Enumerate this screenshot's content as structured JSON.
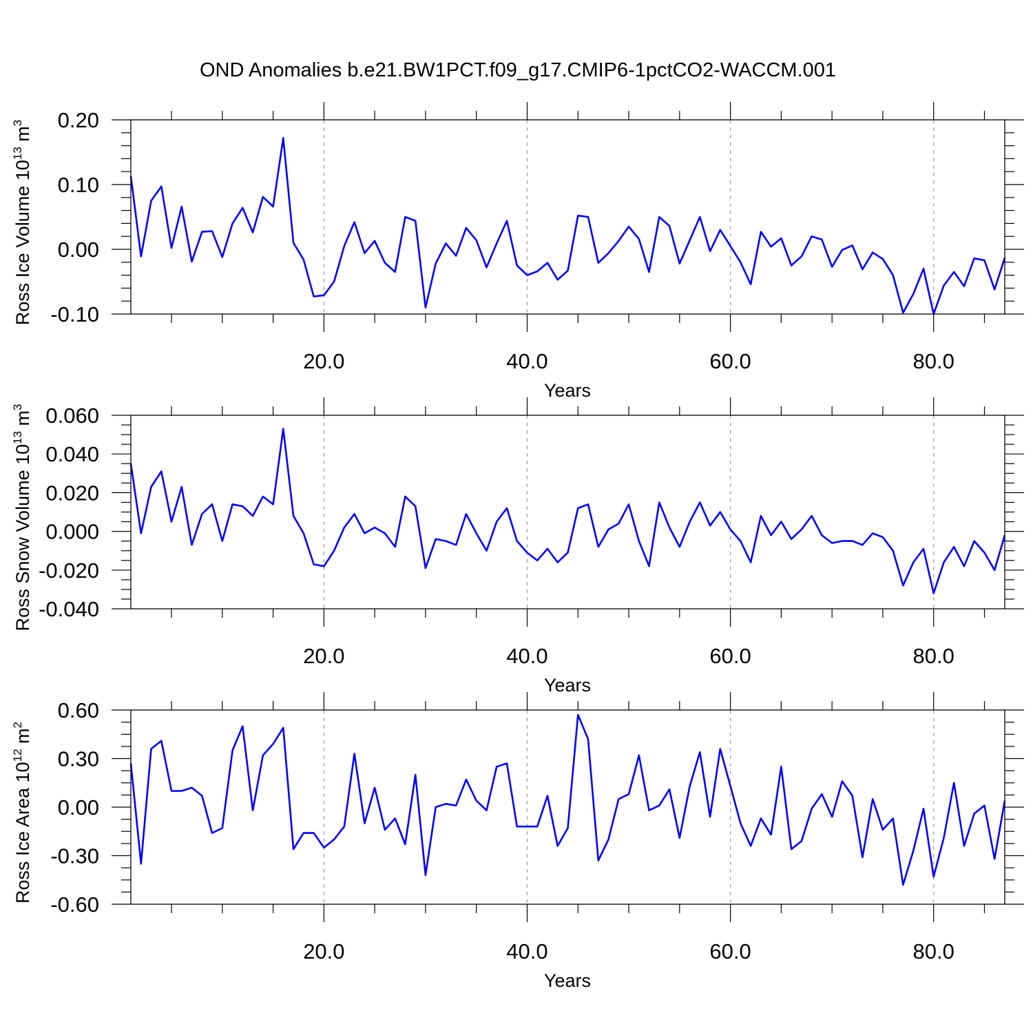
{
  "title": "OND Anomalies b.e21.BW1PCT.f09_g17.CMIP6-1pctCO2-WACCM.001",
  "colors": {
    "series": "#0000ff",
    "axis": "#000000",
    "grid": "#9a9a9a"
  },
  "chart_data": [
    {
      "type": "line",
      "xlabel": "Years",
      "ylabel_main": "Ross Ice Volume 10",
      "ylabel_sup": "13",
      "ylabel_unit": " m",
      "ylabel_unit_sup": "3",
      "xlim": [
        1,
        87
      ],
      "ylim": [
        -0.1,
        0.2
      ],
      "xticks": [
        20,
        40,
        60,
        80
      ],
      "xtick_labels": [
        "20.0",
        "40.0",
        "60.0",
        "80.0"
      ],
      "yticks": [
        -0.1,
        0.0,
        0.1,
        0.2
      ],
      "ytick_labels": [
        "-0.10",
        "0.00",
        "0.10",
        "0.20"
      ],
      "grid": "vertical dashed at x ticks",
      "x_start": 1,
      "values": [
        0.113,
        -0.011,
        0.075,
        0.097,
        0.002,
        0.066,
        -0.019,
        0.027,
        0.028,
        -0.012,
        0.04,
        0.064,
        0.026,
        0.081,
        0.066,
        0.172,
        0.01,
        -0.016,
        -0.073,
        -0.071,
        -0.05,
        0.005,
        0.042,
        -0.006,
        0.013,
        -0.021,
        -0.035,
        0.05,
        0.044,
        -0.09,
        -0.022,
        0.009,
        -0.01,
        0.033,
        0.014,
        -0.028,
        0.009,
        0.044,
        -0.025,
        -0.04,
        -0.034,
        -0.021,
        -0.047,
        -0.033,
        0.052,
        0.05,
        -0.021,
        -0.006,
        0.013,
        0.035,
        0.016,
        -0.035,
        0.05,
        0.036,
        -0.022,
        0.014,
        0.05,
        -0.003,
        0.03,
        0.005,
        -0.02,
        -0.054,
        0.027,
        0.004,
        0.017,
        -0.025,
        -0.011,
        0.02,
        0.015,
        -0.027,
        -0.001,
        0.006,
        -0.031,
        -0.005,
        -0.015,
        -0.04,
        -0.098,
        -0.069,
        -0.03,
        -0.1,
        -0.056,
        -0.035,
        -0.057,
        -0.014,
        -0.017,
        -0.062,
        -0.013
      ]
    },
    {
      "type": "line",
      "xlabel": "Years",
      "ylabel_main": "Ross Snow Volume 10",
      "ylabel_sup": "13",
      "ylabel_unit": " m",
      "ylabel_unit_sup": "3",
      "xlim": [
        1,
        87
      ],
      "ylim": [
        -0.04,
        0.06
      ],
      "xticks": [
        20,
        40,
        60,
        80
      ],
      "xtick_labels": [
        "20.0",
        "40.0",
        "60.0",
        "80.0"
      ],
      "yticks": [
        -0.04,
        -0.02,
        0.0,
        0.02,
        0.04,
        0.06
      ],
      "ytick_labels": [
        "-0.040",
        "-0.020",
        "0.000",
        "0.020",
        "0.040",
        "0.060"
      ],
      "grid": "vertical dashed at x ticks",
      "x_start": 1,
      "values": [
        0.035,
        -0.001,
        0.023,
        0.031,
        0.005,
        0.023,
        -0.007,
        0.009,
        0.014,
        -0.005,
        0.014,
        0.013,
        0.008,
        0.018,
        0.014,
        0.053,
        0.008,
        -0.001,
        -0.017,
        -0.018,
        -0.01,
        0.002,
        0.009,
        -0.001,
        0.002,
        -0.001,
        -0.008,
        0.018,
        0.013,
        -0.019,
        -0.004,
        -0.005,
        -0.007,
        0.009,
        -0.001,
        -0.01,
        0.005,
        0.012,
        -0.005,
        -0.011,
        -0.015,
        -0.009,
        -0.016,
        -0.011,
        0.012,
        0.014,
        -0.008,
        0.001,
        0.004,
        0.014,
        -0.005,
        -0.018,
        0.015,
        0.002,
        -0.008,
        0.005,
        0.015,
        0.003,
        0.01,
        0.001,
        -0.005,
        -0.016,
        0.008,
        -0.002,
        0.005,
        -0.004,
        0.001,
        0.008,
        -0.002,
        -0.006,
        -0.005,
        -0.005,
        -0.007,
        -0.001,
        -0.003,
        -0.01,
        -0.028,
        -0.016,
        -0.009,
        -0.032,
        -0.016,
        -0.008,
        -0.018,
        -0.005,
        -0.011,
        -0.02,
        -0.002
      ]
    },
    {
      "type": "line",
      "xlabel": "Years",
      "ylabel_main": "Ross Ice Area 10",
      "ylabel_sup": "12",
      "ylabel_unit": " m",
      "ylabel_unit_sup": "2",
      "xlim": [
        1,
        87
      ],
      "ylim": [
        -0.6,
        0.6
      ],
      "xticks": [
        20,
        40,
        60,
        80
      ],
      "xtick_labels": [
        "20.0",
        "40.0",
        "60.0",
        "80.0"
      ],
      "yticks": [
        -0.6,
        -0.3,
        0.0,
        0.3,
        0.6
      ],
      "ytick_labels": [
        "-0.60",
        "-0.30",
        "0.00",
        "0.30",
        "0.60"
      ],
      "grid": "vertical dashed at x ticks",
      "x_start": 1,
      "values": [
        0.27,
        -0.35,
        0.36,
        0.41,
        0.1,
        0.1,
        0.12,
        0.07,
        -0.16,
        -0.13,
        0.35,
        0.5,
        -0.02,
        0.32,
        0.39,
        0.49,
        -0.26,
        -0.16,
        -0.16,
        -0.25,
        -0.2,
        -0.12,
        0.33,
        -0.1,
        0.12,
        -0.14,
        -0.07,
        -0.23,
        0.2,
        -0.42,
        0.0,
        0.02,
        0.01,
        0.17,
        0.04,
        -0.02,
        0.25,
        0.27,
        -0.12,
        -0.12,
        -0.12,
        0.07,
        -0.24,
        -0.13,
        0.57,
        0.42,
        -0.33,
        -0.2,
        0.05,
        0.08,
        0.32,
        -0.02,
        0.01,
        0.11,
        -0.19,
        0.13,
        0.34,
        -0.06,
        0.36,
        0.13,
        -0.1,
        -0.24,
        -0.07,
        -0.17,
        0.25,
        -0.26,
        -0.21,
        -0.01,
        0.08,
        -0.06,
        0.16,
        0.07,
        -0.31,
        0.05,
        -0.14,
        -0.07,
        -0.48,
        -0.27,
        -0.01,
        -0.43,
        -0.19,
        0.15,
        -0.24,
        -0.04,
        0.01,
        -0.32,
        0.04
      ]
    }
  ]
}
